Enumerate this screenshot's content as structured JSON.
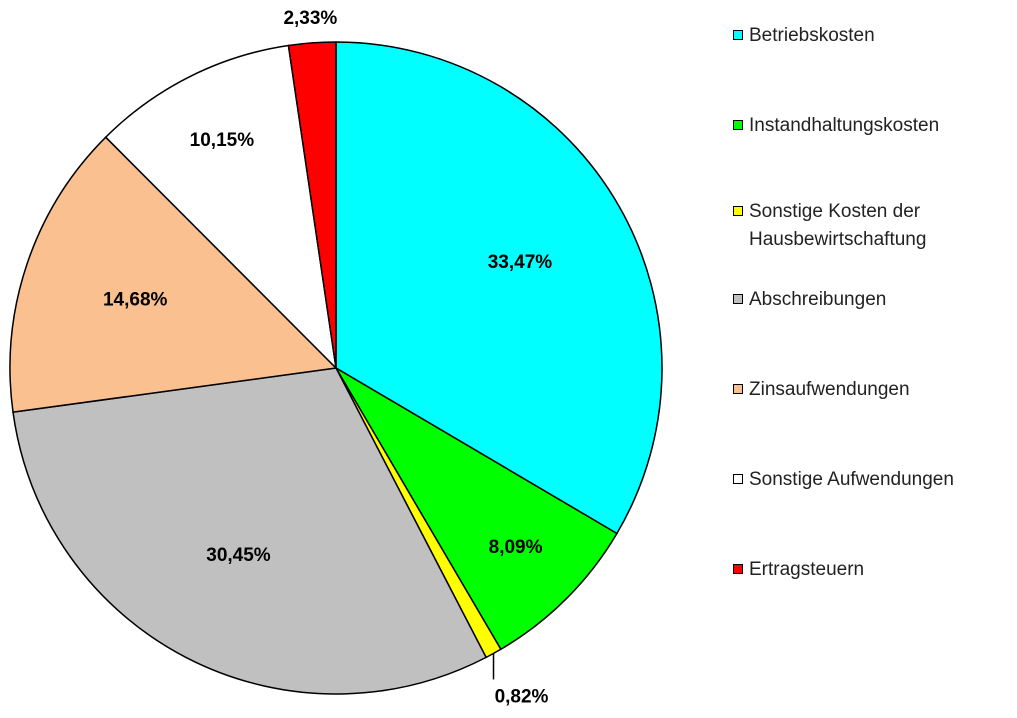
{
  "chart_data": {
    "type": "pie",
    "categories": [
      "Betriebskosten",
      "Instandhaltungskosten",
      "Sonstige Kosten der Hausbewirtschaftung",
      "Abschreibungen",
      "Zinsaufwendungen",
      "Sonstige Aufwendungen",
      "Ertragsteuern"
    ],
    "values": [
      33.47,
      8.09,
      0.82,
      30.45,
      14.68,
      10.15,
      2.33
    ],
    "value_labels": [
      "33,47%",
      "8,09%",
      "0,82%",
      "30,45%",
      "14,68%",
      "10,15%",
      "2,33%"
    ],
    "colors": [
      "#00ffff",
      "#00ff00",
      "#ffff00",
      "#c0c0c0",
      "#fac090",
      "#ffffff",
      "#ff0000"
    ],
    "legend": "right"
  }
}
